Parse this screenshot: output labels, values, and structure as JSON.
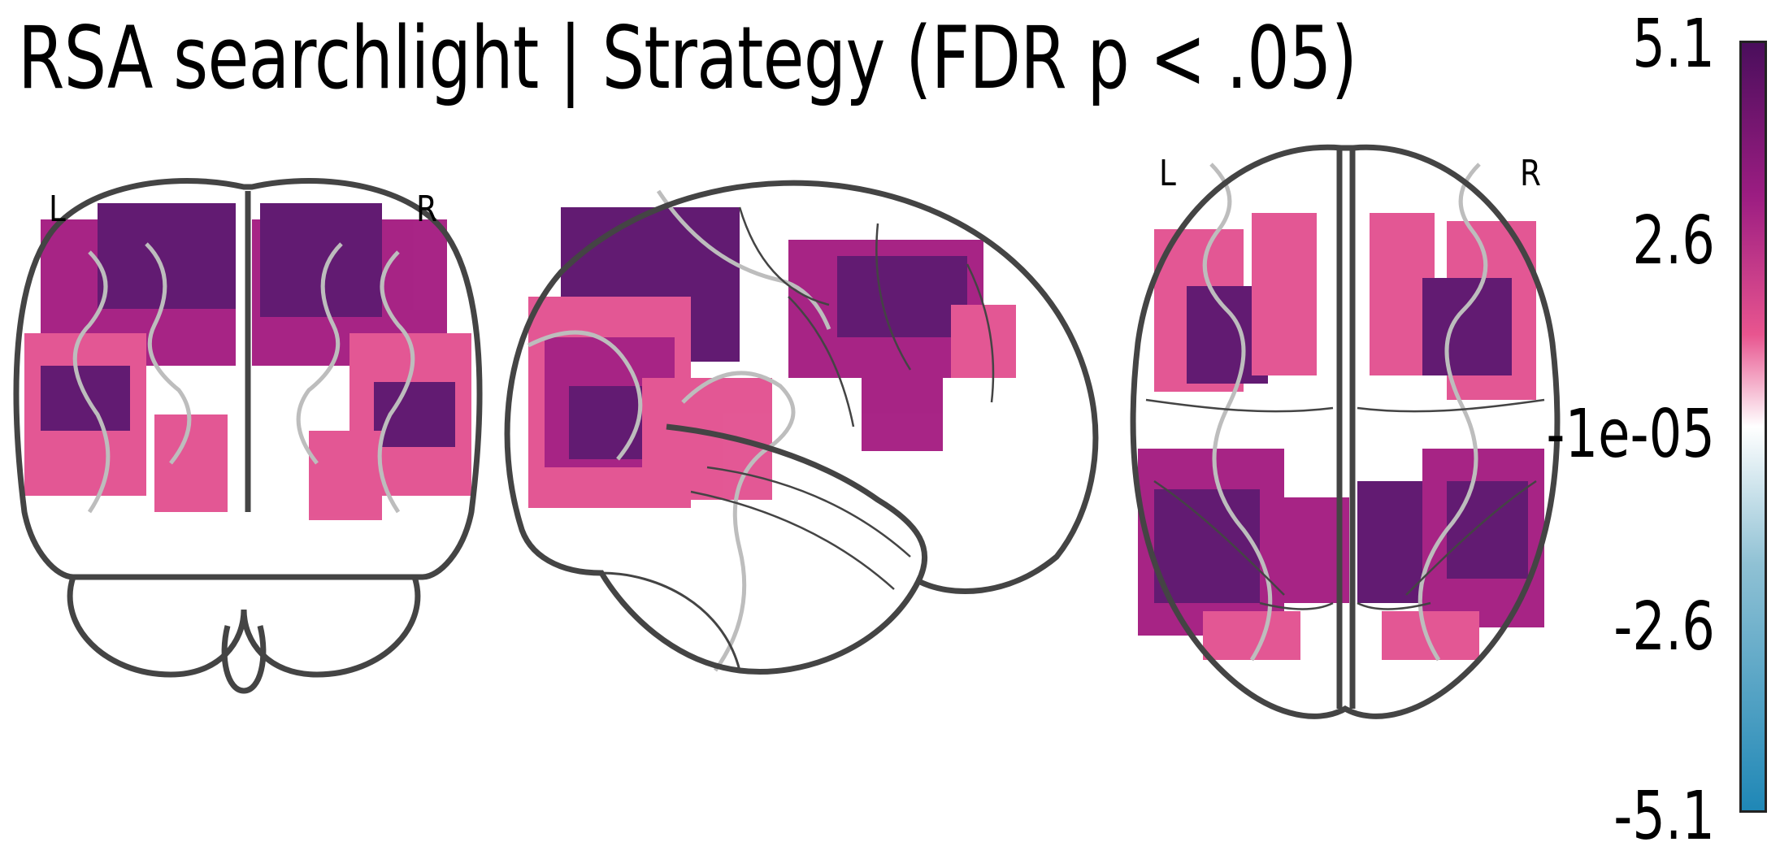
{
  "title": "RSA searchlight | Strategy (FDR p < .05)",
  "orientation": {
    "coronal_left": "L",
    "coronal_right": "R",
    "axial_left": "L",
    "axial_right": "R"
  },
  "colorbar": {
    "ticks": [
      "5.1",
      "2.6",
      "-1e-05",
      "-2.6",
      "-5.1"
    ],
    "colors": {
      "max": "#4a0e5c",
      "high": "#9c1d82",
      "mid_pos": "#e8558f",
      "zero": "#ffffff",
      "mid_neg": "#8fc1d4",
      "min": "#1f87b6"
    }
  },
  "colors": {
    "outline": "#444444",
    "sulci": "#bdbdbd",
    "dark": "#5a0f6b",
    "mid": "#a3197f",
    "pink": "#e24f8f"
  }
}
